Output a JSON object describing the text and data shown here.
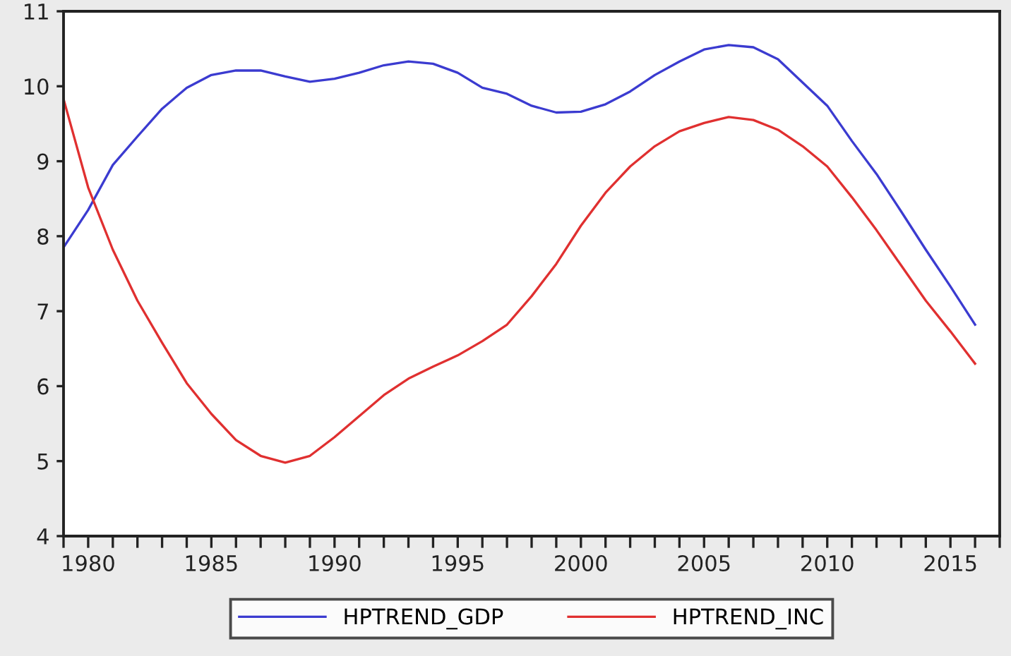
{
  "chart_data": {
    "type": "line",
    "x": [
      1979,
      1980,
      1981,
      1982,
      1983,
      1984,
      1985,
      1986,
      1987,
      1988,
      1989,
      1990,
      1991,
      1992,
      1993,
      1994,
      1995,
      1996,
      1997,
      1998,
      1999,
      2000,
      2001,
      2002,
      2003,
      2004,
      2005,
      2006,
      2007,
      2008,
      2009,
      2010,
      2011,
      2012,
      2013,
      2014,
      2015,
      2016
    ],
    "series": [
      {
        "name": "HPTREND_GDP",
        "color": "#3b3bd0",
        "values": [
          7.85,
          8.35,
          8.95,
          9.33,
          9.7,
          9.98,
          10.15,
          10.21,
          10.21,
          10.13,
          10.06,
          10.1,
          10.18,
          10.28,
          10.33,
          10.3,
          10.18,
          9.98,
          9.9,
          9.74,
          9.65,
          9.66,
          9.76,
          9.93,
          10.15,
          10.33,
          10.49,
          10.55,
          10.52,
          10.36,
          10.05,
          9.74,
          9.27,
          8.83,
          8.33,
          7.82,
          7.33,
          6.82
        ]
      },
      {
        "name": "HPTREND_INC",
        "color": "#e03030",
        "values": [
          9.83,
          8.65,
          7.82,
          7.14,
          6.58,
          6.04,
          5.63,
          5.28,
          5.07,
          4.98,
          5.07,
          5.32,
          5.6,
          5.88,
          6.1,
          6.26,
          6.41,
          6.6,
          6.82,
          7.2,
          7.63,
          8.14,
          8.58,
          8.93,
          9.2,
          9.4,
          9.51,
          9.59,
          9.55,
          9.42,
          9.2,
          8.93,
          8.52,
          8.08,
          7.61,
          7.14,
          6.73,
          6.3
        ]
      }
    ],
    "xlim": [
      1979,
      2017
    ],
    "xticks": [
      {
        "value": 1979,
        "label": null
      },
      1980,
      {
        "value": 1981,
        "label": null
      },
      {
        "value": 1982,
        "label": null
      },
      {
        "value": 1983,
        "label": null
      },
      {
        "value": 1984,
        "label": null
      },
      1985,
      {
        "value": 1986,
        "label": null
      },
      {
        "value": 1987,
        "label": null
      },
      {
        "value": 1988,
        "label": null
      },
      {
        "value": 1989,
        "label": null
      },
      1990,
      {
        "value": 1991,
        "label": null
      },
      {
        "value": 1992,
        "label": null
      },
      {
        "value": 1993,
        "label": null
      },
      {
        "value": 1994,
        "label": null
      },
      1995,
      {
        "value": 1996,
        "label": null
      },
      {
        "value": 1997,
        "label": null
      },
      {
        "value": 1998,
        "label": null
      },
      {
        "value": 1999,
        "label": null
      },
      2000,
      {
        "value": 2001,
        "label": null
      },
      {
        "value": 2002,
        "label": null
      },
      {
        "value": 2003,
        "label": null
      },
      {
        "value": 2004,
        "label": null
      },
      2005,
      {
        "value": 2006,
        "label": null
      },
      {
        "value": 2007,
        "label": null
      },
      {
        "value": 2008,
        "label": null
      },
      {
        "value": 2009,
        "label": null
      },
      2010,
      {
        "value": 2011,
        "label": null
      },
      {
        "value": 2012,
        "label": null
      },
      {
        "value": 2013,
        "label": null
      },
      {
        "value": 2014,
        "label": null
      },
      2015,
      {
        "value": 2016,
        "label": null
      },
      {
        "value": 2017,
        "label": null
      }
    ],
    "ylim": [
      4,
      11
    ],
    "yticks": [
      4,
      5,
      6,
      7,
      8,
      9,
      10,
      11
    ],
    "grid": false,
    "legend": "bottom",
    "marker": "none",
    "line_style": "solid"
  }
}
